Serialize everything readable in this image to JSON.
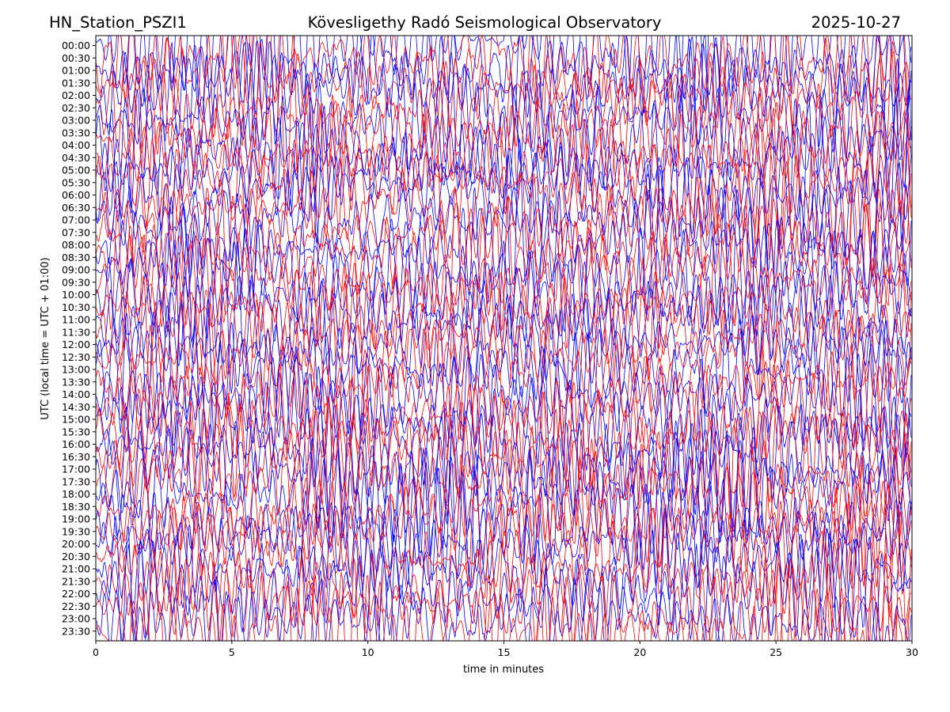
{
  "header": {
    "station": "HN_Station_PSZI1",
    "observatory": "Kövesligethy Radó Seismological Observatory",
    "date": "2025-10-27"
  },
  "chart_data": {
    "type": "line",
    "title": "Kövesligethy Radó Seismological Observatory",
    "xlabel": "time in minutes",
    "ylabel": "UTC (local time = UTC + 01:00)",
    "xlim": [
      0,
      30
    ],
    "x_ticks": [
      "0",
      "5",
      "10",
      "15",
      "20",
      "25",
      "30"
    ],
    "y_ticks": [
      "00:00",
      "00:30",
      "01:00",
      "01:30",
      "02:00",
      "02:30",
      "03:00",
      "03:30",
      "04:00",
      "04:30",
      "05:00",
      "05:30",
      "06:00",
      "06:30",
      "07:00",
      "07:30",
      "08:00",
      "08:30",
      "09:00",
      "09:30",
      "10:00",
      "10:30",
      "11:00",
      "11:30",
      "12:00",
      "12:30",
      "13:00",
      "13:30",
      "14:00",
      "14:30",
      "15:00",
      "15:30",
      "16:00",
      "16:30",
      "17:00",
      "17:30",
      "18:00",
      "18:30",
      "19:00",
      "19:30",
      "20:00",
      "20:30",
      "21:00",
      "21:30",
      "22:00",
      "22:30",
      "23:00",
      "23:30"
    ],
    "trace_colors": [
      "#0000ff",
      "#ff0000"
    ],
    "grid": false,
    "legend": "none"
  }
}
